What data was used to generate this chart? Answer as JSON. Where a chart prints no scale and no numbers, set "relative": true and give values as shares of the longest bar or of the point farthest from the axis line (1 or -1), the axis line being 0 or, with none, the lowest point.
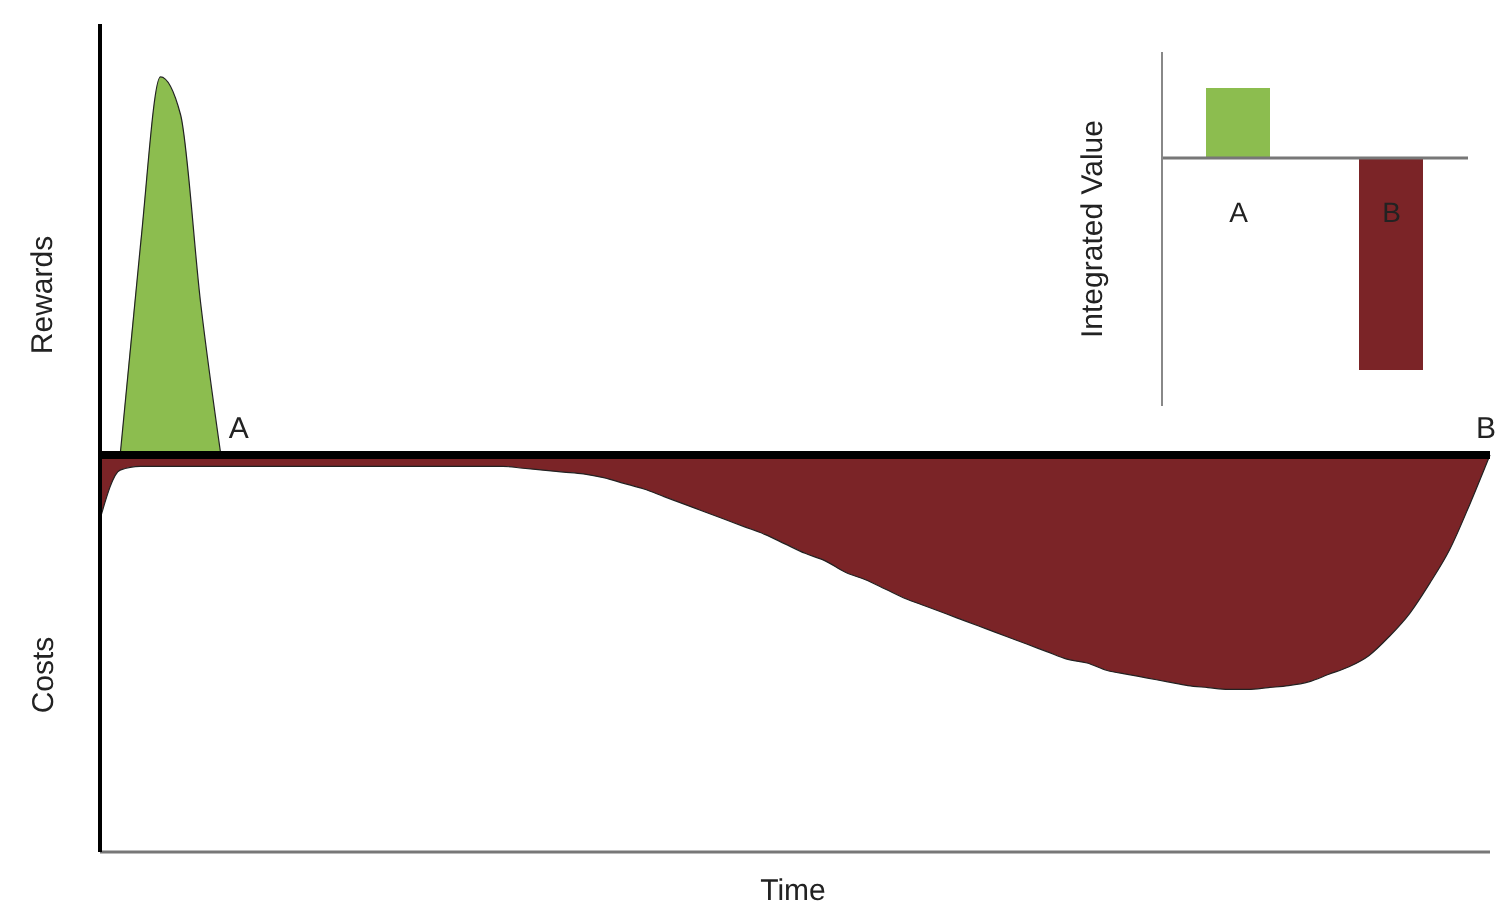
{
  "chart_data": [
    {
      "type": "area",
      "relative": true,
      "xlabel": "Time",
      "ylabel": "Rewards",
      "annotations": [
        "Costs",
        "A",
        "B"
      ],
      "categories": [
        null,
        null,
        null,
        null,
        null,
        null,
        null,
        null,
        null,
        null,
        null,
        null,
        null,
        null,
        null,
        null,
        null,
        null,
        null,
        null,
        null,
        null,
        null,
        null,
        null,
        null,
        null,
        null,
        null,
        null,
        null,
        null,
        null,
        null,
        null,
        null,
        null,
        null,
        null,
        null,
        null,
        null,
        null,
        null,
        null,
        null,
        null,
        null,
        null,
        null,
        null,
        null,
        null,
        null,
        null,
        null,
        null,
        null,
        null,
        null,
        null,
        null,
        null,
        null,
        null,
        null,
        null,
        null,
        null,
        null
      ],
      "series": [
        {
          "color": "#8cbd4f",
          "values": [
            null,
            0,
            0.55,
            1,
            0.9,
            0.4,
            0,
            null,
            null,
            null,
            null,
            null,
            null,
            null,
            null,
            null,
            null,
            null,
            null,
            null,
            null,
            null,
            null,
            null,
            null,
            null,
            null,
            null,
            null,
            null,
            null,
            null,
            null,
            null,
            null,
            null,
            null,
            null,
            null,
            null,
            null,
            null,
            null,
            null,
            null,
            null,
            null,
            null,
            null,
            null,
            null,
            null,
            null,
            null,
            null,
            null,
            null,
            null,
            null,
            null,
            null,
            null,
            null,
            null,
            null,
            null,
            null,
            null,
            null,
            null
          ]
        },
        {
          "color": "#7b2427",
          "values": [
            -0.17,
            -0.04,
            -0.03,
            -0.03,
            -0.03,
            -0.03,
            -0.03,
            -0.03,
            -0.03,
            -0.03,
            -0.03,
            -0.03,
            -0.03,
            -0.03,
            -0.03,
            -0.03,
            -0.03,
            -0.03,
            -0.03,
            -0.03,
            -0.03,
            -0.035,
            -0.04,
            -0.045,
            -0.05,
            -0.06,
            -0.075,
            -0.09,
            -0.11,
            -0.13,
            -0.15,
            -0.17,
            -0.19,
            -0.21,
            -0.235,
            -0.26,
            -0.28,
            -0.31,
            -0.33,
            -0.355,
            -0.38,
            -0.4,
            -0.42,
            -0.44,
            -0.46,
            -0.48,
            -0.5,
            -0.52,
            -0.54,
            -0.55,
            -0.57,
            -0.58,
            -0.59,
            -0.6,
            -0.61,
            -0.615,
            -0.62,
            -0.62,
            -0.615,
            -0.61,
            -0.6,
            -0.58,
            -0.56,
            -0.53,
            -0.48,
            -0.42,
            -0.34,
            -0.25,
            -0.13,
            0
          ]
        }
      ]
    },
    {
      "type": "bar",
      "relative": true,
      "ylabel": "Integrated Value",
      "categories": [
        "A",
        "B"
      ],
      "values": [
        0.33,
        -1
      ],
      "colors": [
        "#8cbd4f",
        "#7b2427"
      ]
    }
  ]
}
